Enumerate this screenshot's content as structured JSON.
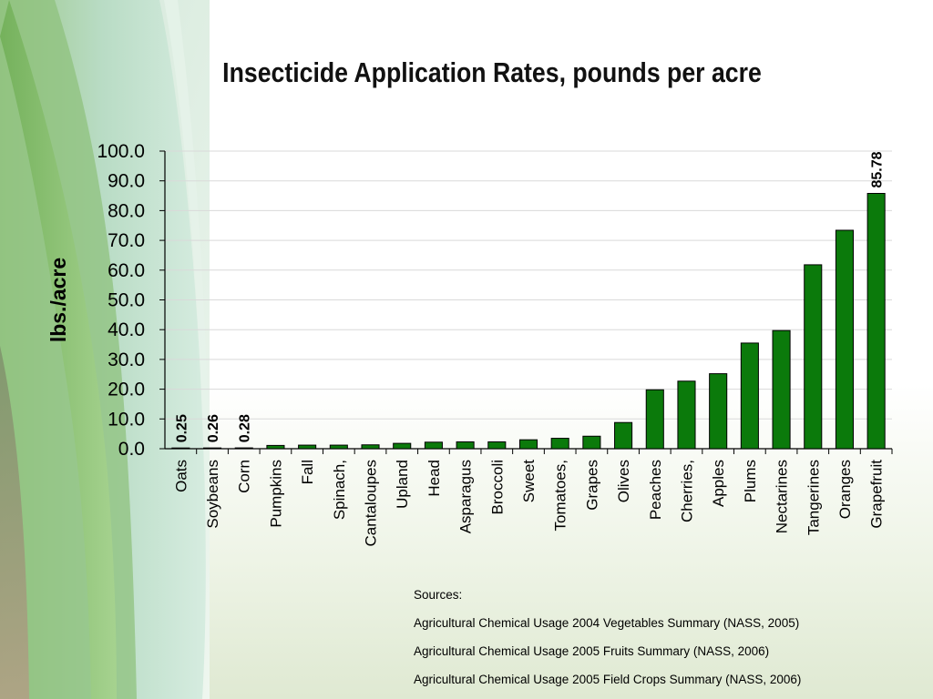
{
  "slide": {
    "title": "Insecticide Application Rates, pounds per acre",
    "sources_header": "Sources:",
    "sources": [
      "Agricultural Chemical Usage 2004 Vegetables Summary (NASS, 2005)",
      "Agricultural Chemical Usage 2005 Fruits Summary (NASS, 2006)",
      "Agricultural Chemical Usage 2005 Field Crops Summary (NASS, 2006)"
    ]
  },
  "chart_data": {
    "type": "bar",
    "title": "Insecticide Application Rates, pounds per acre",
    "ylabel": "lbs./acre",
    "xlabel": "",
    "ylim": [
      0,
      100
    ],
    "yticks": [
      "0.0",
      "10.0",
      "20.0",
      "30.0",
      "40.0",
      "50.0",
      "60.0",
      "70.0",
      "80.0",
      "90.0",
      "100.0"
    ],
    "grid": true,
    "categories": [
      "Oats",
      "Soybeans",
      "Corn",
      "Pumpkins",
      "Fall",
      "Spinach,",
      "Cantaloupes",
      "Upland",
      "Head",
      "Asparagus",
      "Broccoli",
      "Sweet",
      "Tomatoes,",
      "Grapes",
      "Olives",
      "Peaches",
      "Cherries,",
      "Apples",
      "Plums",
      "Nectarines",
      "Tangerines",
      "Oranges",
      "Grapefruit"
    ],
    "values": [
      0.25,
      0.26,
      0.28,
      1.1,
      1.2,
      1.2,
      1.3,
      1.8,
      2.2,
      2.3,
      2.3,
      3.0,
      3.5,
      4.2,
      8.8,
      19.8,
      22.7,
      25.2,
      35.5,
      39.7,
      61.8,
      73.4,
      85.78
    ],
    "data_labels": {
      "0": "0.25",
      "1": "0.26",
      "2": "0.28",
      "22": "85.78"
    },
    "bar_color": "#0b7a0b"
  }
}
